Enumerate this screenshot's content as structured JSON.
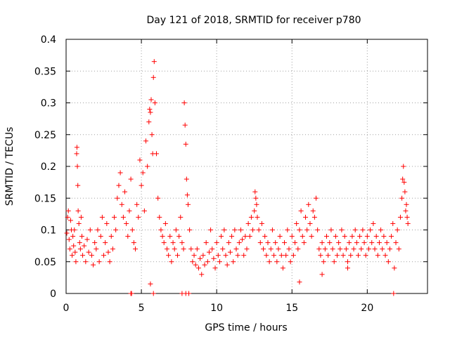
{
  "chart_data": {
    "type": "scatter",
    "title": "Day 121 of 2018, SRMTID for receiver p780",
    "xlabel": "GPS time / hours",
    "ylabel": "SRMTID / TECUs",
    "xlim": [
      0,
      24
    ],
    "ylim": [
      0,
      0.4
    ],
    "x_ticks": [
      0,
      5,
      10,
      15,
      20
    ],
    "x_tick_labels": [
      "0",
      "5",
      "10",
      "15",
      "20"
    ],
    "y_ticks": [
      0,
      0.05,
      0.1,
      0.15,
      0.2,
      0.25,
      0.3,
      0.35,
      0.4
    ],
    "y_tick_labels": [
      "0",
      "0.05",
      "0.1",
      "0.15",
      "0.2",
      "0.25",
      "0.3",
      "0.35",
      "0.4"
    ],
    "grid": true,
    "marker": "+",
    "color": "#ff0000",
    "series": [
      {
        "name": "SRMTID",
        "points": [
          [
            0.05,
            0.095
          ],
          [
            0.1,
            0.12
          ],
          [
            0.15,
            0.13
          ],
          [
            0.2,
            0.085
          ],
          [
            0.25,
            0.07
          ],
          [
            0.3,
            0.115
          ],
          [
            0.35,
            0.1
          ],
          [
            0.4,
            0.06
          ],
          [
            0.45,
            0.09
          ],
          [
            0.5,
            0.075
          ],
          [
            0.55,
            0.1
          ],
          [
            0.6,
            0.065
          ],
          [
            0.65,
            0.05
          ],
          [
            0.7,
            0.22
          ],
          [
            0.72,
            0.23
          ],
          [
            0.75,
            0.2
          ],
          [
            0.78,
            0.17
          ],
          [
            0.8,
            0.13
          ],
          [
            0.85,
            0.11
          ],
          [
            0.9,
            0.08
          ],
          [
            0.95,
            0.07
          ],
          [
            1.0,
            0.12
          ],
          [
            1.05,
            0.09
          ],
          [
            1.1,
            0.06
          ],
          [
            1.2,
            0.075
          ],
          [
            1.3,
            0.05
          ],
          [
            1.4,
            0.085
          ],
          [
            1.5,
            0.065
          ],
          [
            1.6,
            0.1
          ],
          [
            1.7,
            0.06
          ],
          [
            1.8,
            0.045
          ],
          [
            1.9,
            0.08
          ],
          [
            2.0,
            0.07
          ],
          [
            2.1,
            0.1
          ],
          [
            2.2,
            0.05
          ],
          [
            2.3,
            0.09
          ],
          [
            2.4,
            0.12
          ],
          [
            2.5,
            0.06
          ],
          [
            2.6,
            0.08
          ],
          [
            2.7,
            0.11
          ],
          [
            2.8,
            0.065
          ],
          [
            2.9,
            0.05
          ],
          [
            3.0,
            0.09
          ],
          [
            3.1,
            0.07
          ],
          [
            3.2,
            0.12
          ],
          [
            3.3,
            0.1
          ],
          [
            3.4,
            0.15
          ],
          [
            3.5,
            0.17
          ],
          [
            3.6,
            0.19
          ],
          [
            3.7,
            0.14
          ],
          [
            3.8,
            0.12
          ],
          [
            3.9,
            0.16
          ],
          [
            4.0,
            0.11
          ],
          [
            4.1,
            0.09
          ],
          [
            4.2,
            0.13
          ],
          [
            4.3,
            0.18
          ],
          [
            4.4,
            0.1
          ],
          [
            4.5,
            0.08
          ],
          [
            4.6,
            0.07
          ],
          [
            4.7,
            0.14
          ],
          [
            4.8,
            0.12
          ],
          [
            4.9,
            0.21
          ],
          [
            5.0,
            0.17
          ],
          [
            5.1,
            0.19
          ],
          [
            5.2,
            0.13
          ],
          [
            5.3,
            0.24
          ],
          [
            5.4,
            0.2
          ],
          [
            5.5,
            0.27
          ],
          [
            5.55,
            0.29
          ],
          [
            5.6,
            0.285
          ],
          [
            5.65,
            0.305
          ],
          [
            5.7,
            0.25
          ],
          [
            5.75,
            0.22
          ],
          [
            5.8,
            0.34
          ],
          [
            5.85,
            0.365
          ],
          [
            5.9,
            0.3
          ],
          [
            6.0,
            0.22
          ],
          [
            6.1,
            0.15
          ],
          [
            6.2,
            0.12
          ],
          [
            6.3,
            0.1
          ],
          [
            6.4,
            0.09
          ],
          [
            6.5,
            0.08
          ],
          [
            6.6,
            0.11
          ],
          [
            6.7,
            0.07
          ],
          [
            6.8,
            0.06
          ],
          [
            6.9,
            0.09
          ],
          [
            7.0,
            0.05
          ],
          [
            7.1,
            0.08
          ],
          [
            7.2,
            0.07
          ],
          [
            7.3,
            0.1
          ],
          [
            7.4,
            0.06
          ],
          [
            7.5,
            0.09
          ],
          [
            7.6,
            0.12
          ],
          [
            7.7,
            0.08
          ],
          [
            7.8,
            0.07
          ],
          [
            7.85,
            0.3
          ],
          [
            7.9,
            0.265
          ],
          [
            7.95,
            0.235
          ],
          [
            8.0,
            0.18
          ],
          [
            8.05,
            0.155
          ],
          [
            8.1,
            0.14
          ],
          [
            8.2,
            0.1
          ],
          [
            8.3,
            0.07
          ],
          [
            8.4,
            0.05
          ],
          [
            8.5,
            0.06
          ],
          [
            8.6,
            0.045
          ],
          [
            8.7,
            0.07
          ],
          [
            8.8,
            0.04
          ],
          [
            8.9,
            0.055
          ],
          [
            9.0,
            0.03
          ],
          [
            9.1,
            0.06
          ],
          [
            9.2,
            0.045
          ],
          [
            9.3,
            0.08
          ],
          [
            9.4,
            0.05
          ],
          [
            9.5,
            0.065
          ],
          [
            9.6,
            0.1
          ],
          [
            9.7,
            0.07
          ],
          [
            9.8,
            0.055
          ],
          [
            9.9,
            0.04
          ],
          [
            10.0,
            0.08
          ],
          [
            10.1,
            0.06
          ],
          [
            10.2,
            0.05
          ],
          [
            10.3,
            0.09
          ],
          [
            10.4,
            0.07
          ],
          [
            10.5,
            0.1
          ],
          [
            10.6,
            0.06
          ],
          [
            10.7,
            0.045
          ],
          [
            10.8,
            0.08
          ],
          [
            10.9,
            0.065
          ],
          [
            11.0,
            0.09
          ],
          [
            11.1,
            0.05
          ],
          [
            11.2,
            0.1
          ],
          [
            11.3,
            0.07
          ],
          [
            11.4,
            0.06
          ],
          [
            11.5,
            0.08
          ],
          [
            11.6,
            0.1
          ],
          [
            11.7,
            0.085
          ],
          [
            11.8,
            0.06
          ],
          [
            11.9,
            0.09
          ],
          [
            12.0,
            0.07
          ],
          [
            12.1,
            0.11
          ],
          [
            12.2,
            0.09
          ],
          [
            12.3,
            0.12
          ],
          [
            12.4,
            0.1
          ],
          [
            12.5,
            0.13
          ],
          [
            12.55,
            0.16
          ],
          [
            12.6,
            0.15
          ],
          [
            12.65,
            0.14
          ],
          [
            12.7,
            0.12
          ],
          [
            12.8,
            0.1
          ],
          [
            12.9,
            0.08
          ],
          [
            13.0,
            0.11
          ],
          [
            13.1,
            0.07
          ],
          [
            13.2,
            0.09
          ],
          [
            13.3,
            0.06
          ],
          [
            13.4,
            0.08
          ],
          [
            13.5,
            0.05
          ],
          [
            13.6,
            0.07
          ],
          [
            13.7,
            0.1
          ],
          [
            13.8,
            0.06
          ],
          [
            13.9,
            0.08
          ],
          [
            14.0,
            0.05
          ],
          [
            14.1,
            0.07
          ],
          [
            14.2,
            0.09
          ],
          [
            14.3,
            0.06
          ],
          [
            14.4,
            0.04
          ],
          [
            14.5,
            0.08
          ],
          [
            14.6,
            0.06
          ],
          [
            14.7,
            0.1
          ],
          [
            14.8,
            0.07
          ],
          [
            14.9,
            0.05
          ],
          [
            15.0,
            0.09
          ],
          [
            15.1,
            0.06
          ],
          [
            15.2,
            0.08
          ],
          [
            15.3,
            0.11
          ],
          [
            15.4,
            0.07
          ],
          [
            15.5,
            0.1
          ],
          [
            15.6,
            0.13
          ],
          [
            15.7,
            0.09
          ],
          [
            15.8,
            0.08
          ],
          [
            15.9,
            0.12
          ],
          [
            16.0,
            0.1
          ],
          [
            16.1,
            0.14
          ],
          [
            16.2,
            0.11
          ],
          [
            16.3,
            0.09
          ],
          [
            16.4,
            0.13
          ],
          [
            16.5,
            0.12
          ],
          [
            16.6,
            0.15
          ],
          [
            16.7,
            0.1
          ],
          [
            16.8,
            0.07
          ],
          [
            16.9,
            0.06
          ],
          [
            17.0,
            0.08
          ],
          [
            17.1,
            0.05
          ],
          [
            17.2,
            0.07
          ],
          [
            17.3,
            0.09
          ],
          [
            17.4,
            0.06
          ],
          [
            17.5,
            0.08
          ],
          [
            17.6,
            0.1
          ],
          [
            17.7,
            0.07
          ],
          [
            17.8,
            0.05
          ],
          [
            17.9,
            0.09
          ],
          [
            18.0,
            0.06
          ],
          [
            18.1,
            0.08
          ],
          [
            18.2,
            0.07
          ],
          [
            18.3,
            0.1
          ],
          [
            18.4,
            0.06
          ],
          [
            18.5,
            0.09
          ],
          [
            18.6,
            0.07
          ],
          [
            18.7,
            0.05
          ],
          [
            18.8,
            0.08
          ],
          [
            18.9,
            0.06
          ],
          [
            19.0,
            0.09
          ],
          [
            19.1,
            0.07
          ],
          [
            19.2,
            0.1
          ],
          [
            19.3,
            0.08
          ],
          [
            19.4,
            0.06
          ],
          [
            19.5,
            0.09
          ],
          [
            19.6,
            0.07
          ],
          [
            19.7,
            0.1
          ],
          [
            19.8,
            0.08
          ],
          [
            19.9,
            0.06
          ],
          [
            20.0,
            0.09
          ],
          [
            20.1,
            0.07
          ],
          [
            20.2,
            0.1
          ],
          [
            20.3,
            0.08
          ],
          [
            20.4,
            0.11
          ],
          [
            20.5,
            0.07
          ],
          [
            20.6,
            0.09
          ],
          [
            20.7,
            0.06
          ],
          [
            20.8,
            0.08
          ],
          [
            20.9,
            0.1
          ],
          [
            21.0,
            0.07
          ],
          [
            21.1,
            0.09
          ],
          [
            21.2,
            0.06
          ],
          [
            21.3,
            0.08
          ],
          [
            21.4,
            0.05
          ],
          [
            21.5,
            0.07
          ],
          [
            21.6,
            0.09
          ],
          [
            21.7,
            0.11
          ],
          [
            21.8,
            0.04
          ],
          [
            21.9,
            0.08
          ],
          [
            22.0,
            0.1
          ],
          [
            22.1,
            0.07
          ],
          [
            22.2,
            0.12
          ],
          [
            22.3,
            0.15
          ],
          [
            22.35,
            0.18
          ],
          [
            22.4,
            0.2
          ],
          [
            22.45,
            0.175
          ],
          [
            22.5,
            0.16
          ],
          [
            22.55,
            0.13
          ],
          [
            22.6,
            0.14
          ],
          [
            22.65,
            0.12
          ],
          [
            22.7,
            0.11
          ],
          [
            4.3,
            0.0
          ],
          [
            4.35,
            0.0
          ],
          [
            5.8,
            0.0
          ],
          [
            7.7,
            0.0
          ],
          [
            7.95,
            0.0
          ],
          [
            8.15,
            0.0
          ],
          [
            21.75,
            0.0
          ],
          [
            5.6,
            0.015
          ],
          [
            15.5,
            0.018
          ],
          [
            17.0,
            0.03
          ],
          [
            18.7,
            0.04
          ]
        ]
      }
    ]
  }
}
